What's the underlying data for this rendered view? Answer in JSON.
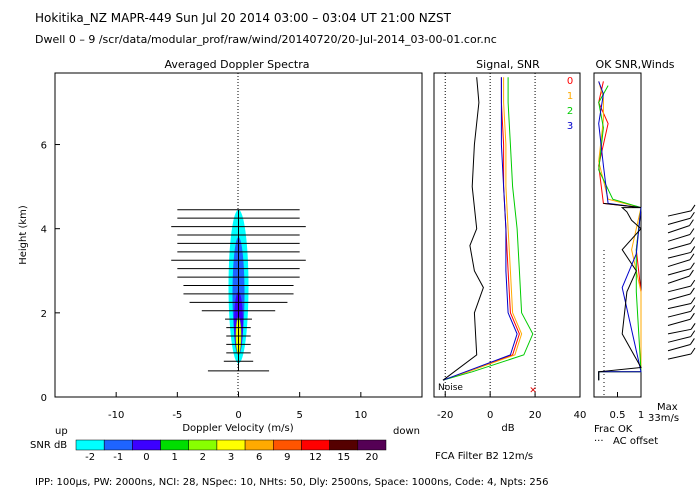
{
  "header": {
    "title": "Hokitika_NZ  MAPR-449  Sun Jul 20 2014 03:00 – 03:04 UT 21:00 NZST",
    "dwell": "Dwell  0 – 9   /scr/data/modular_prof/raw/wind/20140720/20-Jul-2014_03-00-01.cor.nc"
  },
  "footer": {
    "params": "IPP: 100µs,  PW: 2000ns,  NCI:  28,  NSpec: 10, NHts: 50,  Dly: 2500ns,  Space: 1000ns,  Code: 4,  Npts: 256",
    "fca": "FCA Filter B2 12m/s"
  },
  "colorbar": {
    "label_up": "up",
    "label_down": "down",
    "label_snr": "SNR dB",
    "ticks": [
      "-2",
      "-1",
      "0",
      "1",
      "2",
      "3",
      "6",
      "9",
      "12",
      "15",
      "20"
    ],
    "colors": [
      "#00ffff",
      "#1e64ff",
      "#3c00ff",
      "#00dd00",
      "#88ff00",
      "#ffff00",
      "#ffaa00",
      "#ff5500",
      "#ff0000",
      "#550000",
      "#550055"
    ]
  },
  "chart_data": [
    {
      "type": "heatmap",
      "title": "Averaged Doppler Spectra",
      "xlabel": "Doppler Velocity (m/s)",
      "ylabel": "Height (km)",
      "xlim": [
        -15,
        15
      ],
      "ylim": [
        0,
        7.7
      ],
      "xticks": [
        "-10",
        "-5",
        "0",
        "5",
        "10"
      ],
      "yticks": [
        "0",
        "2",
        "4",
        "6"
      ],
      "spectral_width_bars": [
        {
          "h": 0.62,
          "w": 2.5
        },
        {
          "h": 0.85,
          "w": 1.2
        },
        {
          "h": 1.05,
          "w": 1.0
        },
        {
          "h": 1.25,
          "w": 1.0
        },
        {
          "h": 1.45,
          "w": 1.0
        },
        {
          "h": 1.65,
          "w": 1.0
        },
        {
          "h": 1.85,
          "w": 1.1
        },
        {
          "h": 2.05,
          "w": 3.0
        },
        {
          "h": 2.25,
          "w": 4.0
        },
        {
          "h": 2.45,
          "w": 4.5
        },
        {
          "h": 2.65,
          "w": 4.5
        },
        {
          "h": 2.85,
          "w": 5.0
        },
        {
          "h": 3.05,
          "w": 5.0
        },
        {
          "h": 3.25,
          "w": 5.5
        },
        {
          "h": 3.45,
          "w": 5.0
        },
        {
          "h": 3.65,
          "w": 5.0
        },
        {
          "h": 3.85,
          "w": 5.0
        },
        {
          "h": 4.05,
          "w": 5.5
        },
        {
          "h": 4.25,
          "w": 5.0
        },
        {
          "h": 4.45,
          "w": 5.0
        }
      ]
    },
    {
      "type": "line",
      "title": "Signal, SNR",
      "xlabel": "dB",
      "xlim": [
        -25,
        40
      ],
      "ylim": [
        0,
        7.7
      ],
      "xticks": [
        "-20",
        "0",
        "20",
        "40"
      ],
      "noise_label": "Noise",
      "series": [
        {
          "name": "0",
          "color": "#ff0000",
          "x": [
            -21,
            -10,
            10,
            13,
            9,
            8,
            7,
            6,
            6,
            5,
            5
          ],
          "y": [
            0.4,
            0.6,
            1.0,
            1.5,
            2.0,
            3.0,
            4.0,
            5.0,
            6.0,
            7.0,
            7.6
          ]
        },
        {
          "name": "1",
          "color": "#ffaa00",
          "x": [
            -21,
            -10,
            11,
            14,
            10,
            9,
            8,
            7,
            7,
            6,
            6
          ],
          "y": [
            0.4,
            0.6,
            1.0,
            1.5,
            2.0,
            3.0,
            4.0,
            5.0,
            6.0,
            7.0,
            7.6
          ]
        },
        {
          "name": "2",
          "color": "#00cc00",
          "x": [
            -21,
            -8,
            15,
            19,
            14,
            13,
            12,
            10,
            9,
            8,
            8
          ],
          "y": [
            0.4,
            0.6,
            1.0,
            1.5,
            2.0,
            3.0,
            4.0,
            5.0,
            6.0,
            7.0,
            7.6
          ]
        },
        {
          "name": "3",
          "color": "#0000cc",
          "x": [
            -21,
            -11,
            9,
            12,
            8,
            7,
            7,
            6,
            5,
            5,
            5
          ],
          "y": [
            0.4,
            0.6,
            1.0,
            1.5,
            2.0,
            3.0,
            4.0,
            5.0,
            6.0,
            7.0,
            7.6
          ]
        },
        {
          "name": "signal",
          "color": "#000000",
          "x": [
            -21,
            -6,
            -7,
            -3,
            -7,
            -9,
            -6,
            -8,
            -7,
            -5,
            -6
          ],
          "y": [
            0.4,
            1.0,
            2.0,
            2.6,
            3.0,
            3.6,
            4.0,
            5.0,
            6.0,
            7.0,
            7.6
          ]
        }
      ]
    },
    {
      "type": "line",
      "title": "OK SNR,Winds",
      "xlabel": "Frac OK",
      "xlim": [
        0,
        1
      ],
      "ylim": [
        0,
        7.7
      ],
      "xticks": [
        "0.5",
        "1"
      ],
      "legend": [
        "0",
        "1",
        "2",
        "3"
      ],
      "legend_colors": [
        "#ff0000",
        "#ffaa00",
        "#00cc00",
        "#0000cc"
      ],
      "ac_offset_label": "AC offset",
      "max_label": "Max",
      "max_value": "33m/s",
      "series": [
        {
          "name": "0",
          "color": "#ff0000",
          "x": [
            0.1,
            0.1,
            1.0,
            1.0,
            0.9,
            1.0,
            0.2,
            0.1,
            0.3,
            0.1,
            0.2
          ],
          "y": [
            0.4,
            0.6,
            0.6,
            2.5,
            3.5,
            4.5,
            4.6,
            5.5,
            6.5,
            7.0,
            7.5
          ]
        },
        {
          "name": "1",
          "color": "#ffaa00",
          "x": [
            0.1,
            0.1,
            1.0,
            1.0,
            0.8,
            1.0,
            0.3,
            0.1,
            0.2,
            0.2,
            0.1
          ],
          "y": [
            0.4,
            0.6,
            0.6,
            2.5,
            3.5,
            4.5,
            4.7,
            5.6,
            6.6,
            7.1,
            7.5
          ]
        },
        {
          "name": "2",
          "color": "#00cc00",
          "x": [
            0.1,
            0.1,
            1.0,
            0.9,
            0.9,
            1.0,
            0.4,
            0.1,
            0.2,
            0.1,
            0.3
          ],
          "y": [
            0.4,
            0.6,
            0.6,
            2.5,
            3.5,
            4.5,
            4.7,
            5.4,
            6.4,
            7.0,
            7.4
          ]
        },
        {
          "name": "3",
          "color": "#0000cc",
          "x": [
            0.1,
            0.1,
            1.0,
            0.6,
            0.9,
            1.0,
            0.3,
            0.2,
            0.1,
            0.2,
            0.1
          ],
          "y": [
            0.4,
            0.6,
            0.6,
            2.6,
            3.4,
            4.5,
            4.6,
            5.5,
            6.5,
            7.2,
            7.5
          ]
        },
        {
          "name": "winds",
          "color": "#000000",
          "x": [
            0.1,
            0.1,
            1.0,
            0.6,
            0.7,
            0.9,
            0.6,
            1.0,
            0.8,
            0.7,
            0.6,
            1.0,
            0.2
          ],
          "y": [
            0.4,
            0.6,
            0.7,
            1.5,
            2.5,
            3.0,
            3.5,
            4.0,
            4.2,
            4.4,
            4.5,
            4.5,
            4.6
          ]
        }
      ],
      "wind_barbs": [
        {
          "h": 0.9,
          "dir": 260
        },
        {
          "h": 1.1,
          "dir": 250
        },
        {
          "h": 1.3,
          "dir": 255
        },
        {
          "h": 1.5,
          "dir": 265
        },
        {
          "h": 1.7,
          "dir": 250
        },
        {
          "h": 1.9,
          "dir": 255
        },
        {
          "h": 2.1,
          "dir": 260
        },
        {
          "h": 2.3,
          "dir": 250
        },
        {
          "h": 2.5,
          "dir": 255
        },
        {
          "h": 2.7,
          "dir": 240
        },
        {
          "h": 2.9,
          "dir": 250
        },
        {
          "h": 3.1,
          "dir": 245
        },
        {
          "h": 3.3,
          "dir": 255
        },
        {
          "h": 3.5,
          "dir": 250
        },
        {
          "h": 3.7,
          "dir": 245
        },
        {
          "h": 3.9,
          "dir": 240
        },
        {
          "h": 4.1,
          "dir": 250
        },
        {
          "h": 4.3,
          "dir": 260
        }
      ]
    }
  ]
}
